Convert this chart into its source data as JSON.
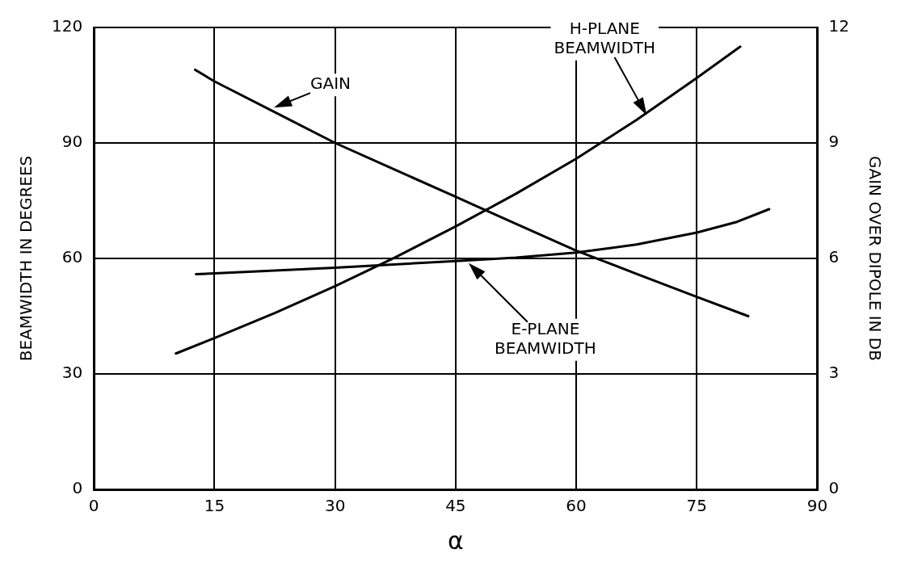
{
  "chart_data": {
    "type": "line",
    "xlabel": "α",
    "ylabel": "BEAMWIDTH IN DEGREES",
    "y2label": "GAIN OVER DIPOLE IN DB",
    "xlim": [
      0,
      90
    ],
    "xticks": [
      0,
      15,
      30,
      45,
      60,
      75,
      90
    ],
    "ylim": [
      0,
      120
    ],
    "yticks": [
      0,
      30,
      60,
      90,
      120
    ],
    "y2lim": [
      0,
      12
    ],
    "y2ticks": [
      0,
      3,
      6,
      9,
      12
    ],
    "grid": true,
    "legend": false,
    "marker": "none",
    "line_style": "solid",
    "series": [
      {
        "color": "#000000",
        "axis": "y2",
        "x": [
          12.6,
          15,
          22.5,
          30,
          37.5,
          45,
          52.5,
          60,
          67.5,
          75,
          81.4
        ],
        "values": [
          10.9,
          10.6,
          9.8,
          9.0,
          8.3,
          7.6,
          6.9,
          6.2,
          5.6,
          5.0,
          4.5
        ]
      },
      {
        "color": "#000000",
        "axis": "y",
        "x": [
          10.2,
          15,
          22.5,
          30,
          37.5,
          45,
          52.5,
          60,
          67.5,
          75,
          80.4
        ],
        "values": [
          35.3,
          39.3,
          45.8,
          52.8,
          60.3,
          68.3,
          76.8,
          85.9,
          96.0,
          106.9,
          115.0
        ]
      },
      {
        "color": "#000000",
        "axis": "y",
        "x": [
          12.7,
          15,
          30,
          45,
          52.5,
          60,
          67.5,
          75,
          80,
          84.0
        ],
        "values": [
          55.9,
          56.1,
          57.6,
          59.3,
          60.2,
          61.5,
          63.6,
          66.7,
          69.5,
          72.8
        ]
      }
    ],
    "annotations": [
      {
        "text": "GAIN",
        "x": 22.4,
        "y": 99.2
      },
      "H-PLANE\nBEAMWIDTH",
      "E-PLANE\nBEAMWIDTH"
    ]
  }
}
